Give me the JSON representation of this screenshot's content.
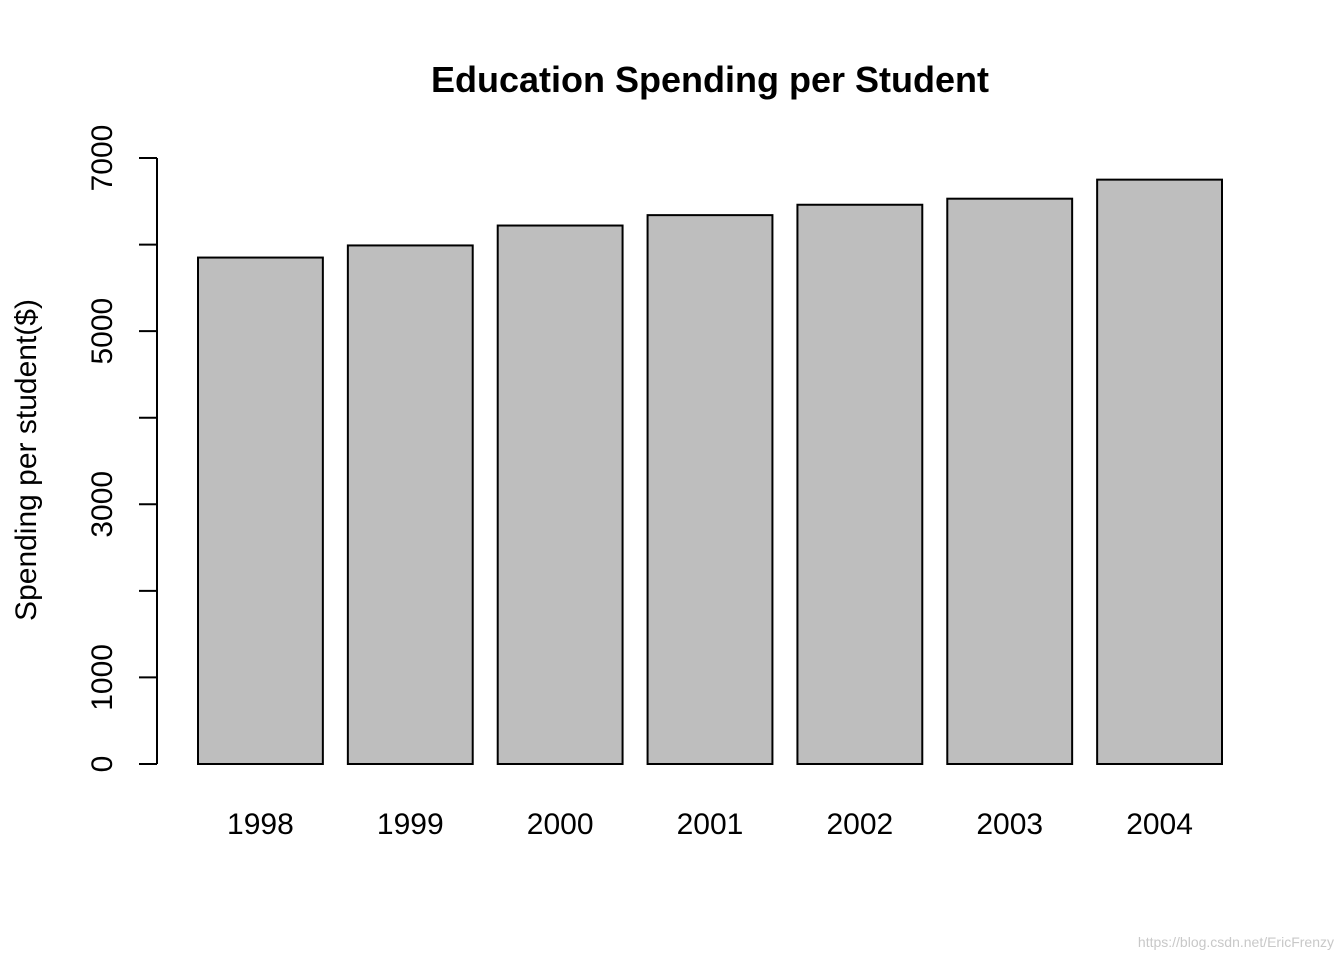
{
  "watermark": "https://blog.csdn.net/EricFrenzy",
  "chart_data": {
    "type": "bar",
    "title": "Education Spending per Student",
    "xlabel": "",
    "ylabel": "Spending per student($)",
    "categories": [
      "1998",
      "1999",
      "2000",
      "2001",
      "2002",
      "2003",
      "2004"
    ],
    "values": [
      5850,
      5990,
      6220,
      6340,
      6460,
      6530,
      6750
    ],
    "ylim": [
      0,
      7000
    ],
    "yticks": [
      0,
      1000,
      2000,
      3000,
      4000,
      5000,
      6000,
      7000
    ],
    "ytick_labels": [
      "0",
      "1000",
      "",
      "3000",
      "",
      "5000",
      "",
      "7000"
    ],
    "grid": false,
    "legend": "none",
    "colors": {
      "bar_fill": "#bebebe",
      "bar_stroke": "#000000",
      "axis": "#000000"
    }
  }
}
